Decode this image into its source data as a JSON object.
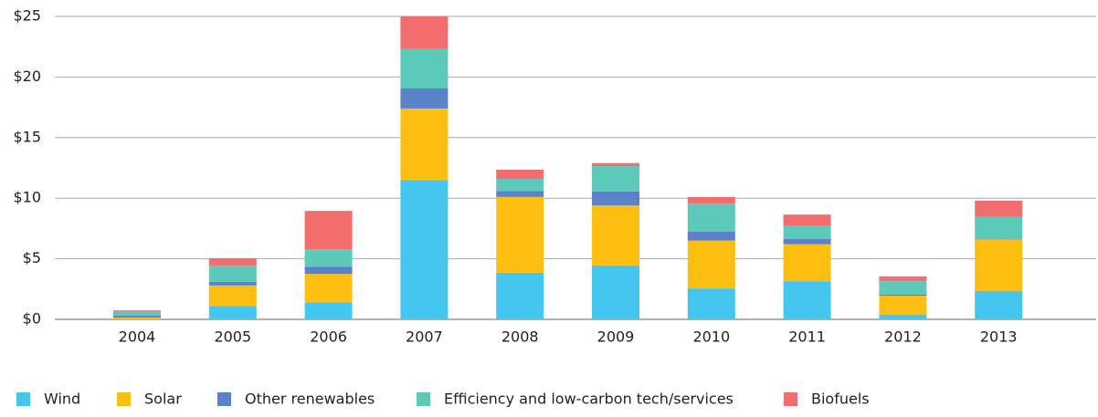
{
  "chart_data": {
    "type": "stacked_bar",
    "categories": [
      "2004",
      "2005",
      "2006",
      "2007",
      "2008",
      "2009",
      "2010",
      "2011",
      "2012",
      "2013"
    ],
    "series": [
      {
        "name": "Wind",
        "color": "#45c6f0",
        "values": [
          0.05,
          1.1,
          1.4,
          11.5,
          3.85,
          4.45,
          2.55,
          3.15,
          0.4,
          2.35
        ]
      },
      {
        "name": "Solar",
        "color": "#fdbe12",
        "values": [
          0.1,
          1.7,
          2.35,
          5.9,
          6.25,
          4.95,
          3.95,
          3.05,
          1.55,
          4.25
        ]
      },
      {
        "name": "Other renewables",
        "color": "#5b82c9",
        "values": [
          0.15,
          0.3,
          0.6,
          1.65,
          0.5,
          1.15,
          0.75,
          0.45,
          0.1,
          0.05
        ]
      },
      {
        "name": "Efficiency and low-carbon tech/services",
        "color": "#5dc9bb",
        "values": [
          0.4,
          1.35,
          1.45,
          3.25,
          1.0,
          2.1,
          2.3,
          1.05,
          1.1,
          1.8
        ]
      },
      {
        "name": "Biofuels",
        "color": "#f26d6d",
        "values": [
          0.05,
          0.6,
          3.15,
          2.7,
          0.75,
          0.25,
          0.55,
          0.95,
          0.4,
          1.35
        ]
      }
    ],
    "ylim": [
      0,
      25
    ],
    "yticks": [
      {
        "value": 0,
        "label": "$0"
      },
      {
        "value": 5,
        "label": "$5"
      },
      {
        "value": 10,
        "label": "$10"
      },
      {
        "value": 15,
        "label": "$15"
      },
      {
        "value": 20,
        "label": "$20"
      },
      {
        "value": 25,
        "label": "$25"
      }
    ],
    "grid": true,
    "legend": "bottom"
  }
}
